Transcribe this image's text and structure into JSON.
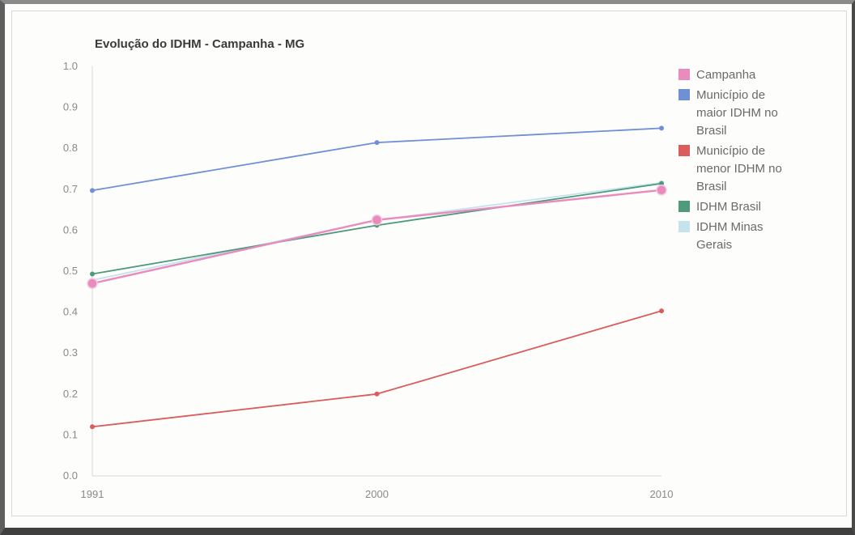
{
  "chart_data": {
    "type": "line",
    "title": "Evolução do IDHM - Campanha - MG",
    "xlabel": "",
    "ylabel": "",
    "x": [
      "1991",
      "2000",
      "2010"
    ],
    "ylim": [
      0,
      1
    ],
    "yticks": [
      "0.0",
      "0.1",
      "0.2",
      "0.3",
      "0.4",
      "0.5",
      "0.6",
      "0.7",
      "0.8",
      "0.9",
      "1.0"
    ],
    "grid": false,
    "legend_position": "right",
    "series": [
      {
        "name": "Campanha",
        "legend_lines": [
          "Campanha"
        ],
        "color": "#e98bbd",
        "values": [
          0.47,
          0.625,
          0.698
        ],
        "marker": "large"
      },
      {
        "name": "Município de maior IDHM no Brasil",
        "legend_lines": [
          "Município de",
          "maior IDHM no",
          "Brasil"
        ],
        "color": "#6f8fd6",
        "values": [
          0.697,
          0.814,
          0.849
        ],
        "marker": "small"
      },
      {
        "name": "Município de menor IDHM no Brasil",
        "legend_lines": [
          "Município de",
          "menor IDHM no",
          "Brasil"
        ],
        "color": "#db5c5c",
        "values": [
          0.12,
          0.2,
          0.403
        ],
        "marker": "small"
      },
      {
        "name": "IDHM Brasil",
        "legend_lines": [
          "IDHM Brasil"
        ],
        "color": "#4e9a7a",
        "values": [
          0.493,
          0.612,
          0.714
        ],
        "marker": "small"
      },
      {
        "name": "IDHM Minas Gerais",
        "legend_lines": [
          "IDHM Minas",
          "Gerais"
        ],
        "color": "#c6e2ee",
        "values": [
          0.478,
          0.624,
          0.716
        ],
        "marker": "small"
      }
    ]
  }
}
